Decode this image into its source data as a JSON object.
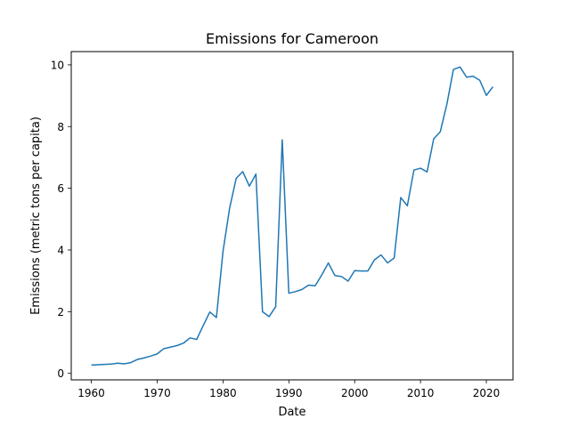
{
  "chart_data": {
    "type": "line",
    "title": "Emissions for Cameroon",
    "xlabel": "Date",
    "ylabel": "Emissions (metric tons per capita)",
    "xlim": [
      1956.95,
      2024.05
    ],
    "ylim": [
      -0.21,
      10.43
    ],
    "xticks": [
      1960,
      1970,
      1980,
      1990,
      2000,
      2010,
      2020
    ],
    "yticks": [
      0,
      2,
      4,
      6,
      8,
      10
    ],
    "grid": false,
    "line_color": "#1f77b4",
    "series": [
      {
        "x": [
          1960,
          1961,
          1962,
          1963,
          1964,
          1965,
          1966,
          1967,
          1968,
          1969,
          1970,
          1971,
          1972,
          1973,
          1974,
          1975,
          1976,
          1977,
          1978,
          1979,
          1980,
          1981,
          1982,
          1983,
          1984,
          1985,
          1986,
          1987,
          1988,
          1989,
          1990,
          1991,
          1992,
          1993,
          1994,
          1995,
          1996,
          1997,
          1998,
          1999,
          2000,
          2001,
          2002,
          2003,
          2004,
          2005,
          2006,
          2007,
          2008,
          2009,
          2010,
          2011,
          2012,
          2013,
          2014,
          2015,
          2016,
          2017,
          2018,
          2019,
          2020,
          2021
        ],
        "values": [
          0.27,
          0.28,
          0.29,
          0.3,
          0.33,
          0.31,
          0.35,
          0.45,
          0.5,
          0.56,
          0.63,
          0.8,
          0.85,
          0.9,
          0.98,
          1.15,
          1.1,
          1.55,
          1.99,
          1.81,
          3.95,
          5.35,
          6.32,
          6.54,
          6.07,
          6.46,
          2.0,
          1.84,
          2.16,
          7.57,
          2.6,
          2.65,
          2.72,
          2.86,
          2.84,
          3.19,
          3.58,
          3.17,
          3.14,
          2.99,
          3.33,
          3.32,
          3.32,
          3.68,
          3.84,
          3.58,
          3.74,
          5.7,
          5.43,
          6.59,
          6.65,
          6.53,
          7.6,
          7.83,
          8.72,
          9.85,
          9.93,
          9.6,
          9.63,
          9.5,
          9.01,
          9.29
        ]
      }
    ]
  }
}
